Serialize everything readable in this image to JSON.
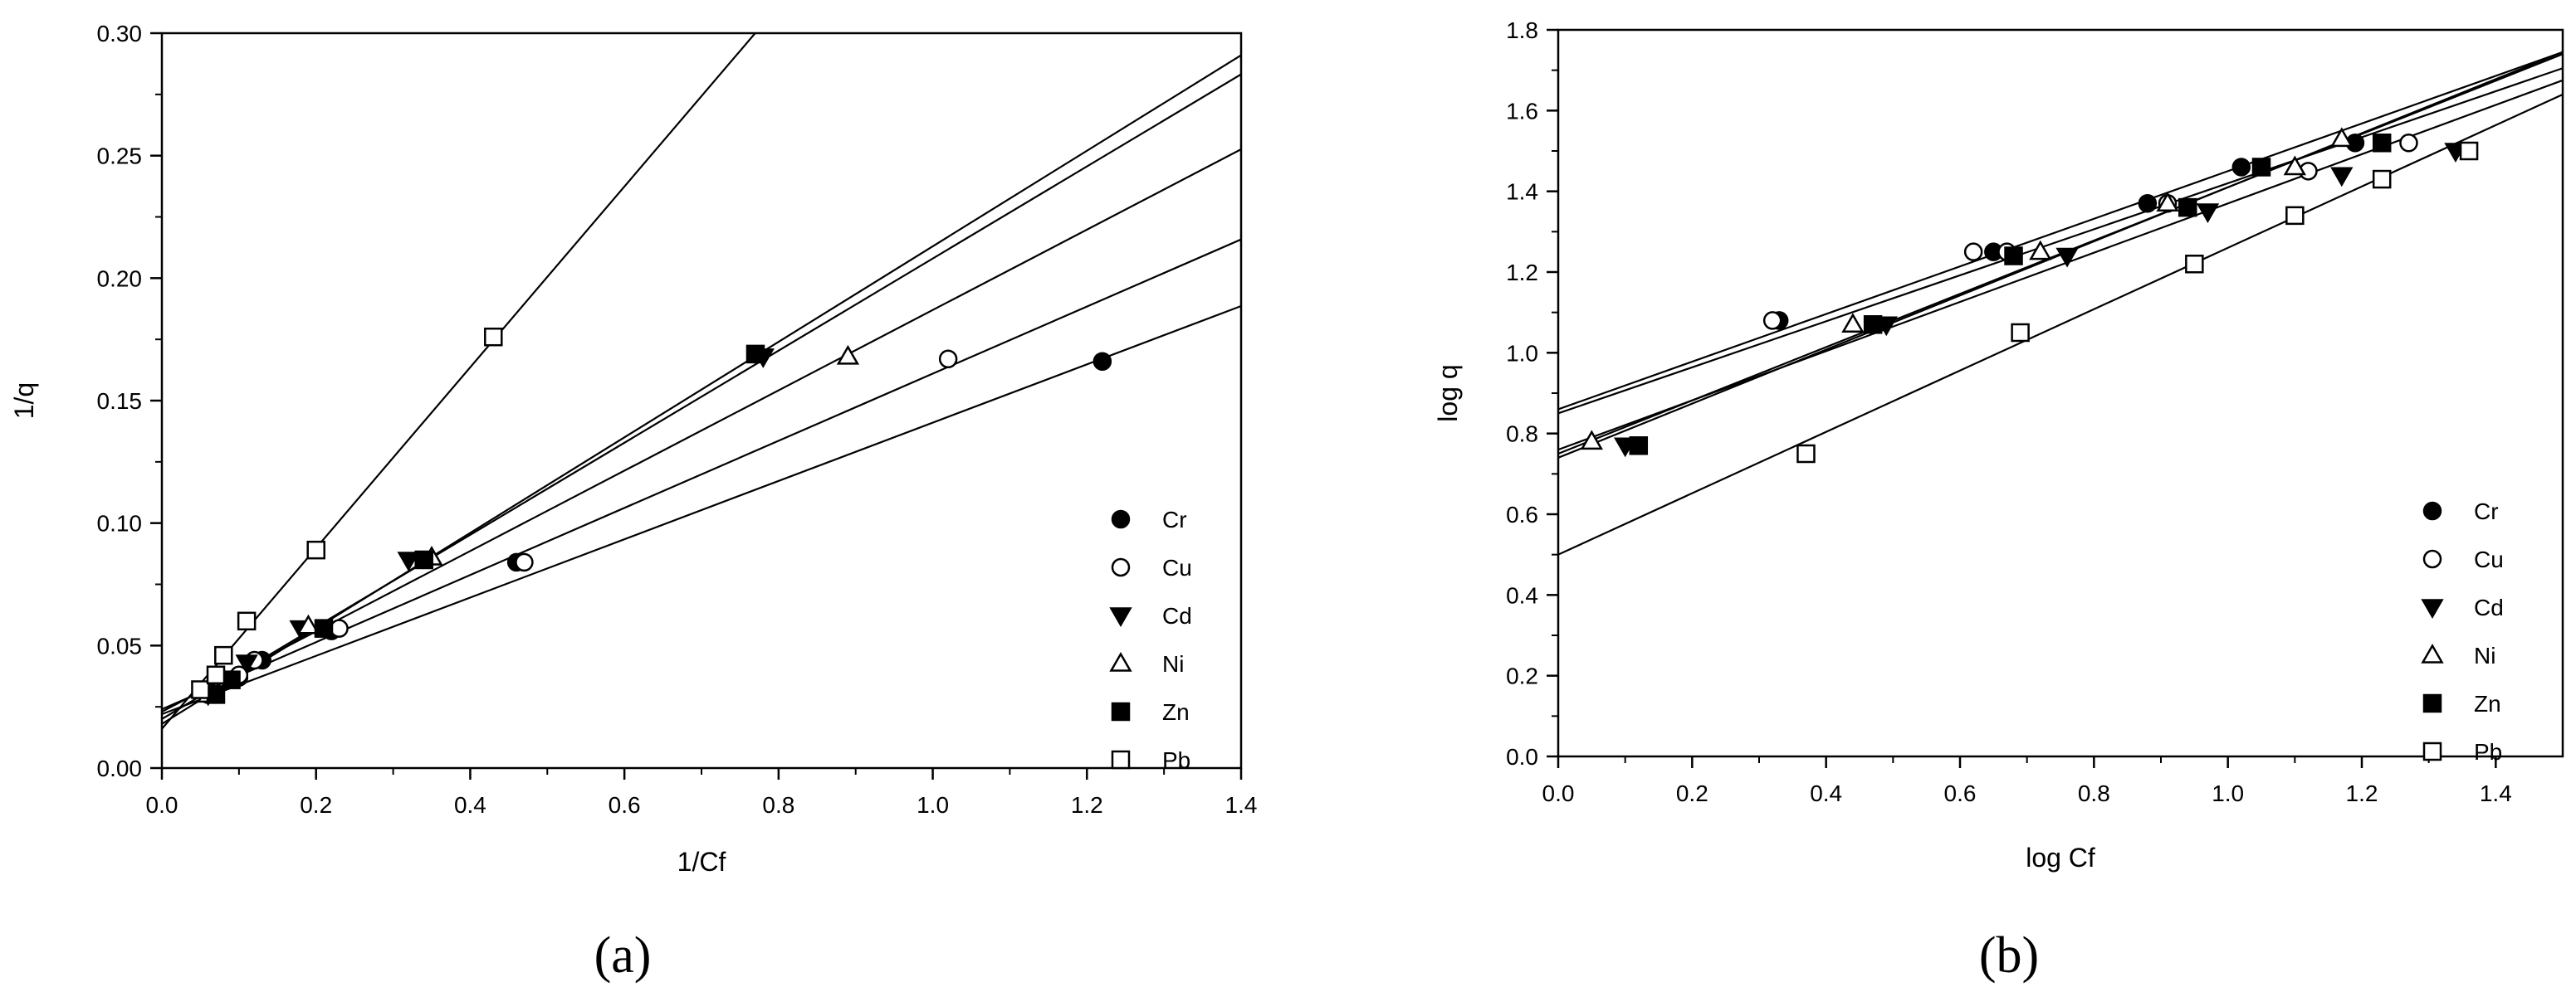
{
  "chart_data": [
    {
      "type": "scatter",
      "panel_label": "(a)",
      "xlabel": "1/Cf",
      "ylabel": "1/q",
      "xlim": [
        0,
        1.4
      ],
      "ylim": [
        0,
        0.3
      ],
      "x_ticks": [
        "0.0",
        "0.2",
        "0.4",
        "0.6",
        "0.8",
        "1.0",
        "1.2",
        "1.4"
      ],
      "y_ticks": [
        "0.00",
        "0.05",
        "0.10",
        "0.15",
        "0.20",
        "0.25",
        "0.30"
      ],
      "grid": false,
      "legend_position": "lower-right",
      "series": [
        {
          "name": "Cr",
          "marker": "filled-circle",
          "points": [
            [
              0.06,
              0.03
            ],
            [
              0.1,
              0.037
            ],
            [
              0.13,
              0.044
            ],
            [
              0.22,
              0.056
            ],
            [
              0.46,
              0.084
            ],
            [
              1.22,
              0.166
            ]
          ],
          "fit": [
            0.022,
            0.119
          ]
        },
        {
          "name": "Cu",
          "marker": "open-circle",
          "points": [
            [
              0.06,
              0.031
            ],
            [
              0.1,
              0.038
            ],
            [
              0.12,
              0.044
            ],
            [
              0.23,
              0.057
            ],
            [
              0.47,
              0.084
            ],
            [
              1.02,
              0.167
            ]
          ],
          "fit": [
            0.024,
            0.137
          ]
        },
        {
          "name": "Cd",
          "marker": "filled-triangle-down",
          "points": [
            [
              0.06,
              0.03
            ],
            [
              0.11,
              0.043
            ],
            [
              0.18,
              0.057
            ],
            [
              0.32,
              0.085
            ],
            [
              0.78,
              0.168
            ]
          ],
          "fit": [
            0.02,
            0.188
          ]
        },
        {
          "name": "Ni",
          "marker": "open-triangle-up",
          "points": [
            [
              0.06,
              0.03
            ],
            [
              0.19,
              0.058
            ],
            [
              0.35,
              0.086
            ],
            [
              0.89,
              0.168
            ]
          ],
          "fit": [
            0.023,
            0.164
          ]
        },
        {
          "name": "Zn",
          "marker": "filled-square",
          "points": [
            [
              0.07,
              0.03
            ],
            [
              0.09,
              0.036
            ],
            [
              0.21,
              0.057
            ],
            [
              0.34,
              0.085
            ],
            [
              0.77,
              0.169
            ]
          ],
          "fit": [
            0.018,
            0.195
          ]
        },
        {
          "name": "Pb",
          "marker": "open-square",
          "points": [
            [
              0.05,
              0.032
            ],
            [
              0.07,
              0.038
            ],
            [
              0.08,
              0.046
            ],
            [
              0.11,
              0.06
            ],
            [
              0.2,
              0.089
            ],
            [
              0.43,
              0.176
            ]
          ],
          "fit": [
            0.016,
            0.369
          ]
        }
      ]
    },
    {
      "type": "scatter",
      "panel_label": "(b)",
      "xlabel": "log Cf",
      "ylabel": "log q",
      "xlim": [
        0,
        1.5
      ],
      "ylim": [
        0,
        1.8
      ],
      "x_ticks": [
        "0.0",
        "0.2",
        "0.4",
        "0.6",
        "0.8",
        "1.0",
        "1.2",
        "1.4"
      ],
      "y_ticks": [
        "0.0",
        "0.2",
        "0.4",
        "0.6",
        "0.8",
        "1.0",
        "1.2",
        "1.4",
        "1.6",
        "1.8"
      ],
      "grid": false,
      "legend_position": "lower-right",
      "series": [
        {
          "name": "Cr",
          "marker": "filled-circle",
          "points": [
            [
              0.33,
              1.08
            ],
            [
              0.65,
              1.25
            ],
            [
              0.88,
              1.37
            ],
            [
              1.02,
              1.46
            ],
            [
              1.19,
              1.52
            ]
          ],
          "fit": [
            0.86,
            0.59
          ]
        },
        {
          "name": "Cu",
          "marker": "open-circle",
          "points": [
            [
              0.32,
              1.08
            ],
            [
              0.62,
              1.25
            ],
            [
              0.67,
              1.25
            ],
            [
              0.91,
              1.37
            ],
            [
              1.12,
              1.45
            ],
            [
              1.27,
              1.52
            ]
          ],
          "fit": [
            0.85,
            0.57
          ]
        },
        {
          "name": "Cd",
          "marker": "filled-triangle-down",
          "points": [
            [
              0.1,
              0.77
            ],
            [
              0.49,
              1.07
            ],
            [
              0.76,
              1.24
            ],
            [
              0.97,
              1.35
            ],
            [
              1.17,
              1.44
            ],
            [
              1.34,
              1.5
            ]
          ],
          "fit": [
            0.76,
            0.61
          ]
        },
        {
          "name": "Ni",
          "marker": "open-triangle-up",
          "points": [
            [
              0.05,
              0.78
            ],
            [
              0.44,
              1.07
            ],
            [
              0.72,
              1.25
            ],
            [
              0.91,
              1.37
            ],
            [
              1.1,
              1.46
            ],
            [
              1.17,
              1.53
            ]
          ],
          "fit": [
            0.75,
            0.66
          ]
        },
        {
          "name": "Zn",
          "marker": "filled-square",
          "points": [
            [
              0.12,
              0.77
            ],
            [
              0.47,
              1.07
            ],
            [
              0.68,
              1.24
            ],
            [
              0.94,
              1.36
            ],
            [
              1.05,
              1.46
            ],
            [
              1.23,
              1.52
            ]
          ],
          "fit": [
            0.74,
            0.67
          ]
        },
        {
          "name": "Pb",
          "marker": "open-square",
          "points": [
            [
              0.37,
              0.75
            ],
            [
              0.69,
              1.05
            ],
            [
              0.95,
              1.22
            ],
            [
              1.1,
              1.34
            ],
            [
              1.23,
              1.43
            ],
            [
              1.36,
              1.5
            ]
          ],
          "fit": [
            0.5,
            0.76
          ]
        }
      ]
    }
  ]
}
